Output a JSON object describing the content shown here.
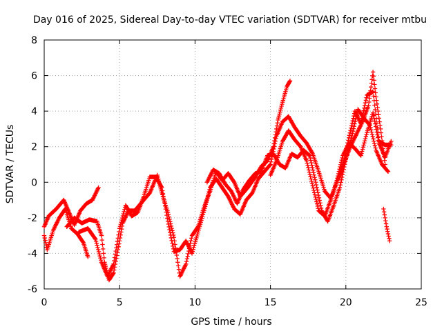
{
  "chart_data": {
    "type": "scatter",
    "title": "Day 016 of 2025, Sidereal Day-to-day VTEC variation (SDTVAR) for receiver mtbu",
    "xlabel": "GPS time / hours",
    "ylabel": "SDTVAR / TECUs",
    "xlim": [
      0,
      25
    ],
    "ylim": [
      -6,
      8
    ],
    "xticks": [
      "0",
      "5",
      "10",
      "15",
      "20",
      "25"
    ],
    "yticks": [
      "-6",
      "-4",
      "-2",
      "0",
      "2",
      "4",
      "6",
      "8"
    ],
    "grid": true,
    "marker": "+",
    "color": "#ff0000",
    "series": [
      {
        "name": "track-1",
        "points": [
          [
            0.0,
            -2.5
          ],
          [
            0.3,
            -1.9
          ],
          [
            0.8,
            -1.5
          ],
          [
            1.3,
            -1.0
          ],
          [
            1.6,
            -1.6
          ],
          [
            2.0,
            -2.4
          ],
          [
            2.4,
            -1.6
          ],
          [
            2.8,
            -1.2
          ],
          [
            3.2,
            -1.0
          ],
          [
            3.6,
            -0.3
          ]
        ]
      },
      {
        "name": "track-2",
        "points": [
          [
            0.0,
            -3.0
          ],
          [
            0.2,
            -3.8
          ],
          [
            0.6,
            -2.7
          ],
          [
            1.0,
            -2.0
          ],
          [
            1.4,
            -1.5
          ],
          [
            1.8,
            -2.6
          ],
          [
            2.2,
            -2.9
          ],
          [
            2.6,
            -3.4
          ],
          [
            2.9,
            -4.2
          ]
        ]
      },
      {
        "name": "track-3",
        "points": [
          [
            1.5,
            -2.5
          ],
          [
            2.0,
            -2.0
          ],
          [
            2.5,
            -2.3
          ],
          [
            3.0,
            -2.1
          ],
          [
            3.5,
            -2.2
          ],
          [
            3.8,
            -3.0
          ],
          [
            4.0,
            -4.5
          ],
          [
            4.3,
            -5.5
          ],
          [
            4.6,
            -5.1
          ],
          [
            5.0,
            -3.3
          ],
          [
            5.2,
            -2.3
          ],
          [
            5.6,
            -1.6
          ],
          [
            6.0,
            -1.6
          ],
          [
            6.5,
            -1.1
          ],
          [
            7.0,
            -0.6
          ],
          [
            7.5,
            0.4
          ],
          [
            7.8,
            -0.6
          ],
          [
            8.2,
            -1.7
          ],
          [
            8.6,
            -3.1
          ],
          [
            9.0,
            -5.3
          ],
          [
            9.4,
            -4.6
          ],
          [
            9.8,
            -3.0
          ],
          [
            10.2,
            -2.5
          ],
          [
            10.6,
            -1.4
          ],
          [
            11.0,
            -0.5
          ],
          [
            11.4,
            0.6
          ],
          [
            11.8,
            0.1
          ],
          [
            12.2,
            0.5
          ],
          [
            12.6,
            0.0
          ],
          [
            13.0,
            -0.8
          ],
          [
            13.5,
            -0.3
          ],
          [
            14.0,
            0.3
          ],
          [
            14.4,
            0.9
          ],
          [
            14.8,
            1.2
          ],
          [
            15.2,
            2.0
          ],
          [
            15.5,
            3.5
          ],
          [
            15.8,
            4.5
          ],
          [
            16.1,
            5.4
          ],
          [
            16.3,
            5.7
          ]
        ]
      },
      {
        "name": "track-4",
        "points": [
          [
            2.3,
            -2.8
          ],
          [
            2.9,
            -2.6
          ],
          [
            3.4,
            -3.2
          ],
          [
            3.8,
            -4.5
          ],
          [
            4.2,
            -5.3
          ],
          [
            4.6,
            -4.6
          ],
          [
            5.0,
            -2.6
          ],
          [
            5.4,
            -1.3
          ],
          [
            5.8,
            -1.9
          ],
          [
            6.2,
            -1.7
          ],
          [
            6.6,
            -0.8
          ],
          [
            7.0,
            0.3
          ],
          [
            7.4,
            0.3
          ],
          [
            7.8,
            -0.3
          ],
          [
            8.2,
            -2.2
          ],
          [
            8.6,
            -3.9
          ],
          [
            9.0,
            -3.8
          ],
          [
            9.4,
            -3.3
          ],
          [
            9.8,
            -4.0
          ],
          [
            10.2,
            -2.8
          ],
          [
            10.6,
            -1.6
          ],
          [
            11.0,
            -0.3
          ],
          [
            11.4,
            0.2
          ],
          [
            11.8,
            -0.3
          ],
          [
            12.2,
            -0.8
          ],
          [
            12.6,
            -1.5
          ],
          [
            13.0,
            -1.8
          ],
          [
            13.4,
            -1.0
          ],
          [
            13.8,
            -0.6
          ],
          [
            14.2,
            0.2
          ],
          [
            14.6,
            0.6
          ],
          [
            15.0,
            1.0
          ],
          [
            15.4,
            2.6
          ],
          [
            15.8,
            3.4
          ],
          [
            16.2,
            3.7
          ],
          [
            16.6,
            3.1
          ],
          [
            17.0,
            2.6
          ],
          [
            17.4,
            2.2
          ],
          [
            17.8,
            1.6
          ],
          [
            18.2,
            0.6
          ],
          [
            18.6,
            -0.5
          ],
          [
            19.0,
            -0.9
          ],
          [
            19.4,
            0.0
          ],
          [
            19.8,
            0.9
          ],
          [
            20.2,
            2.5
          ],
          [
            20.6,
            4.0
          ],
          [
            21.0,
            3.3
          ],
          [
            21.4,
            4.9
          ],
          [
            21.8,
            5.1
          ],
          [
            22.2,
            2.3
          ],
          [
            22.6,
            2.1
          ],
          [
            23.0,
            2.1
          ]
        ]
      },
      {
        "name": "track-5",
        "points": [
          [
            10.8,
            0.0
          ],
          [
            11.2,
            0.7
          ],
          [
            11.6,
            0.5
          ],
          [
            12.0,
            -0.1
          ],
          [
            12.4,
            -0.5
          ],
          [
            12.8,
            -1.2
          ],
          [
            13.2,
            -0.4
          ],
          [
            13.6,
            0.1
          ],
          [
            14.0,
            0.5
          ],
          [
            14.4,
            0.6
          ],
          [
            14.8,
            1.5
          ],
          [
            15.2,
            1.6
          ],
          [
            15.6,
            1.0
          ],
          [
            16.0,
            0.8
          ],
          [
            16.4,
            1.6
          ],
          [
            16.8,
            1.4
          ],
          [
            17.2,
            1.8
          ],
          [
            17.6,
            1.5
          ],
          [
            18.0,
            0.0
          ],
          [
            18.4,
            -1.6
          ],
          [
            18.8,
            -2.2
          ],
          [
            19.2,
            -1.3
          ],
          [
            19.6,
            -0.3
          ],
          [
            20.0,
            1.3
          ],
          [
            20.4,
            2.6
          ],
          [
            20.8,
            4.1
          ],
          [
            21.2,
            3.6
          ],
          [
            21.6,
            3.2
          ],
          [
            22.0,
            1.8
          ],
          [
            22.4,
            1.0
          ],
          [
            22.8,
            0.6
          ]
        ]
      },
      {
        "name": "track-6",
        "points": [
          [
            15.0,
            0.4
          ],
          [
            15.4,
            1.2
          ],
          [
            15.8,
            2.3
          ],
          [
            16.2,
            2.9
          ],
          [
            16.6,
            2.4
          ],
          [
            17.0,
            2.0
          ],
          [
            17.4,
            1.2
          ],
          [
            17.8,
            -0.2
          ],
          [
            18.2,
            -1.6
          ],
          [
            18.6,
            -1.9
          ],
          [
            19.0,
            -1.0
          ],
          [
            19.4,
            0.1
          ],
          [
            19.8,
            1.5
          ],
          [
            20.2,
            2.2
          ],
          [
            20.6,
            1.9
          ],
          [
            21.0,
            1.5
          ],
          [
            21.4,
            2.8
          ],
          [
            21.8,
            3.9
          ],
          [
            22.2,
            2.2
          ],
          [
            22.6,
            1.4
          ],
          [
            23.0,
            2.3
          ]
        ]
      },
      {
        "name": "track-7",
        "points": [
          [
            19.5,
            0.2
          ],
          [
            19.9,
            1.1
          ],
          [
            20.3,
            2.0
          ],
          [
            20.7,
            2.7
          ],
          [
            21.1,
            3.4
          ],
          [
            21.5,
            4.3
          ],
          [
            21.8,
            6.2
          ],
          [
            22.0,
            4.8
          ],
          [
            22.3,
            3.0
          ],
          [
            22.6,
            1.0
          ]
        ]
      },
      {
        "name": "track-8",
        "points": [
          [
            22.5,
            -1.5
          ],
          [
            22.7,
            -2.5
          ],
          [
            22.9,
            -3.3
          ]
        ]
      }
    ]
  }
}
